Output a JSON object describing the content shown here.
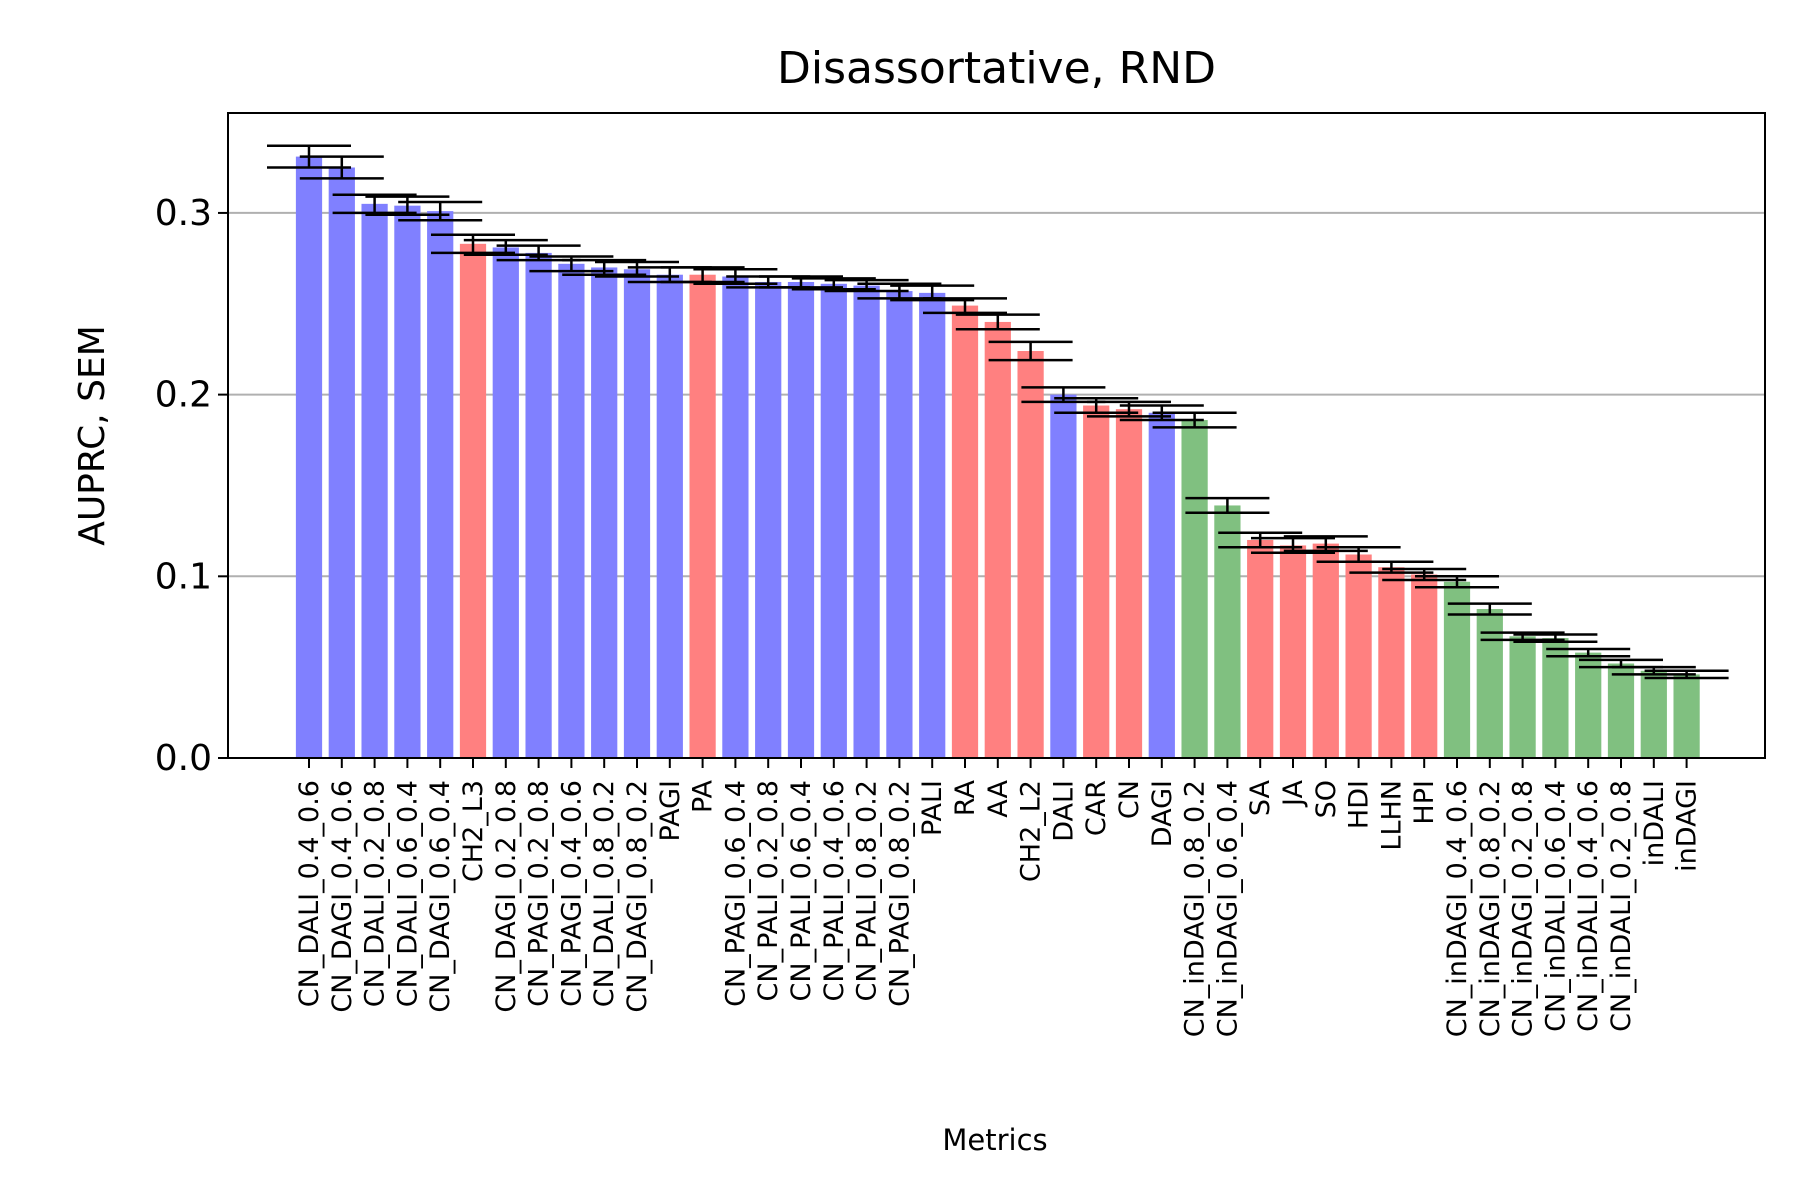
{
  "chart_data": {
    "type": "bar",
    "title": "Disassortative, RND",
    "xlabel": "Metrics",
    "ylabel": "AUPRC, SEM",
    "ylim": [
      0,
      0.355
    ],
    "yticks": [
      0.0,
      0.1,
      0.2,
      0.3
    ],
    "ytick_labels": [
      "0.0",
      "0.1",
      "0.2",
      "0.3"
    ],
    "grid": "horizontal",
    "colors": {
      "blue": "#8080ff",
      "red": "#ff8080",
      "green": "#80c080"
    },
    "categories": [
      "CN_DALI_0.4_0.6",
      "CN_DAGI_0.4_0.6",
      "CN_DALI_0.2_0.8",
      "CN_DALI_0.6_0.4",
      "CN_DAGI_0.6_0.4",
      "CH2_L3",
      "CN_DAGI_0.2_0.8",
      "CN_PAGI_0.2_0.8",
      "CN_PAGI_0.4_0.6",
      "CN_DALI_0.8_0.2",
      "CN_DAGI_0.8_0.2",
      "PAGI",
      "PA",
      "CN_PAGI_0.6_0.4",
      "CN_PALI_0.2_0.8",
      "CN_PALI_0.6_0.4",
      "CN_PALI_0.4_0.6",
      "CN_PALI_0.8_0.2",
      "CN_PAGI_0.8_0.2",
      "PALI",
      "RA",
      "AA",
      "CH2_L2",
      "DALI",
      "CAR",
      "CN",
      "DAGI",
      "CN_inDAGI_0.8_0.2",
      "CN_inDAGI_0.6_0.4",
      "SA",
      "JA",
      "SO",
      "HDI",
      "LLHN",
      "HPI",
      "CN_inDAGI_0.4_0.6",
      "CN_inDAGI_0.8_0.2",
      "CN_inDAGI_0.2_0.8",
      "CN_inDALI_0.6_0.4",
      "CN_inDALI_0.4_0.6",
      "CN_inDALI_0.2_0.8",
      "inDALI",
      "inDAGI"
    ],
    "values": [
      0.331,
      0.325,
      0.305,
      0.304,
      0.301,
      0.283,
      0.281,
      0.278,
      0.272,
      0.27,
      0.269,
      0.266,
      0.266,
      0.265,
      0.262,
      0.262,
      0.261,
      0.26,
      0.257,
      0.256,
      0.249,
      0.24,
      0.224,
      0.2,
      0.194,
      0.192,
      0.19,
      0.186,
      0.139,
      0.12,
      0.117,
      0.118,
      0.112,
      0.105,
      0.101,
      0.097,
      0.082,
      0.067,
      0.066,
      0.058,
      0.052,
      0.048,
      0.046
    ],
    "sem": [
      0.006,
      0.006,
      0.005,
      0.005,
      0.005,
      0.005,
      0.004,
      0.004,
      0.004,
      0.004,
      0.004,
      0.004,
      0.004,
      0.004,
      0.003,
      0.003,
      0.003,
      0.003,
      0.004,
      0.004,
      0.004,
      0.004,
      0.005,
      0.004,
      0.004,
      0.004,
      0.004,
      0.004,
      0.004,
      0.004,
      0.004,
      0.004,
      0.004,
      0.003,
      0.003,
      0.003,
      0.003,
      0.002,
      0.002,
      0.002,
      0.002,
      0.002,
      0.002
    ],
    "bar_colors": [
      "blue",
      "blue",
      "blue",
      "blue",
      "blue",
      "red",
      "blue",
      "blue",
      "blue",
      "blue",
      "blue",
      "blue",
      "red",
      "blue",
      "blue",
      "blue",
      "blue",
      "blue",
      "blue",
      "blue",
      "red",
      "red",
      "red",
      "blue",
      "red",
      "red",
      "blue",
      "green",
      "green",
      "red",
      "red",
      "red",
      "red",
      "red",
      "red",
      "green",
      "green",
      "green",
      "green",
      "green",
      "green",
      "green",
      "green"
    ]
  }
}
